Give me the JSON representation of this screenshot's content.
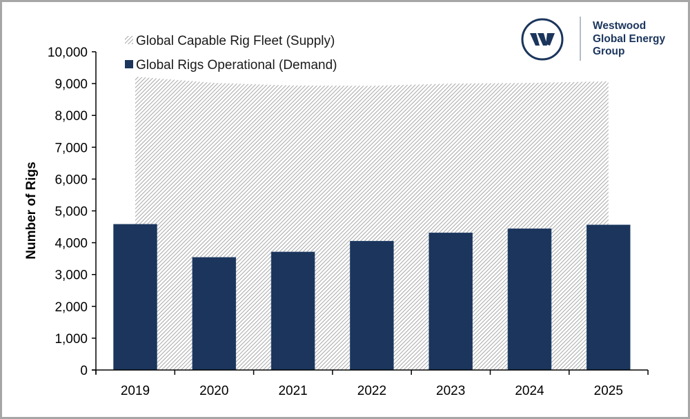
{
  "chart_data": {
    "type": "bar",
    "title": "",
    "xlabel": "",
    "ylabel": "Number of Rigs",
    "categories": [
      "2019",
      "2020",
      "2021",
      "2022",
      "2023",
      "2024",
      "2025"
    ],
    "series": [
      {
        "name": "Global Capable Rig Fleet (Supply)",
        "render": "area",
        "style": "diagonal-hatch",
        "color": "#a6a6a6",
        "values": [
          9220,
          9020,
          8940,
          8930,
          9000,
          9020,
          9070
        ]
      },
      {
        "name": "Global Rigs Operational (Demand)",
        "render": "bar",
        "color": "#1b355c",
        "values": [
          4580,
          3540,
          3710,
          4050,
          4310,
          4440,
          4560
        ]
      }
    ],
    "ylim": [
      0,
      10000
    ],
    "yticks": [
      0,
      1000,
      2000,
      3000,
      4000,
      5000,
      6000,
      7000,
      8000,
      9000,
      10000
    ],
    "ytick_labels": [
      "0",
      "1,000",
      "2,000",
      "3,000",
      "4,000",
      "5,000",
      "6,000",
      "7,000",
      "8,000",
      "9,000",
      "10,000"
    ],
    "grid": false,
    "legend": {
      "placement": "top-left",
      "entries": [
        "Global Capable Rig Fleet (Supply)",
        "Global Rigs Operational (Demand)"
      ]
    }
  },
  "logo": {
    "letter": "W",
    "lines": [
      "Westwood",
      "Global Energy",
      "Group"
    ],
    "color": "#1b355c"
  }
}
